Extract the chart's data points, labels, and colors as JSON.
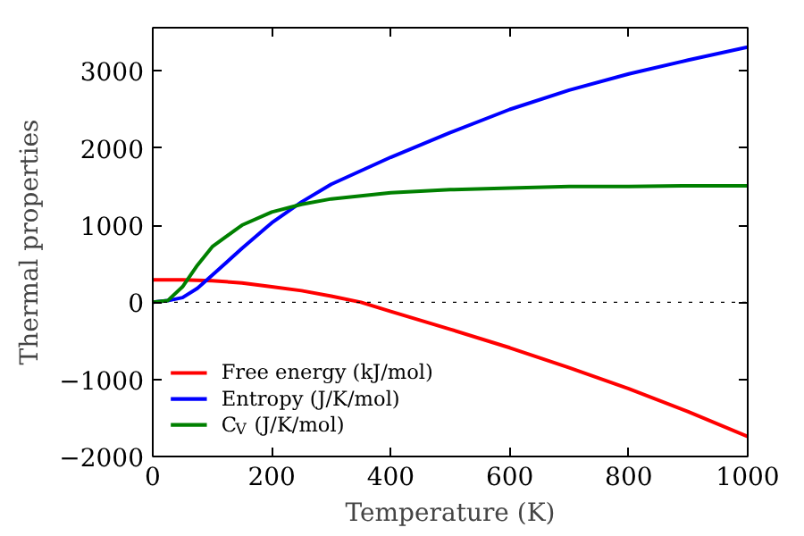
{
  "chart_data": {
    "type": "line",
    "xlabel": "Temperature (K)",
    "ylabel": "Thermal properties",
    "xlim": [
      0,
      1000
    ],
    "ylim": [
      -2000,
      3560
    ],
    "xticks": [
      0,
      200,
      400,
      600,
      800,
      1000
    ],
    "yticks": [
      -2000,
      -1000,
      0,
      1000,
      2000,
      3000
    ],
    "grid": false,
    "legend": "bottom left",
    "line_style": "solid",
    "ref_lines": [
      {
        "axis": "y",
        "value": 0,
        "color": "#000000",
        "line_style": "dotted"
      }
    ],
    "series": [
      {
        "name": "Free energy (kJ/mol)",
        "color": "#ff0000",
        "x": [
          0,
          50,
          100,
          150,
          200,
          250,
          300,
          350,
          400,
          500,
          600,
          700,
          800,
          900,
          1000
        ],
        "values": [
          290,
          290,
          280,
          250,
          200,
          150,
          80,
          0,
          -120,
          -350,
          -590,
          -850,
          -1120,
          -1420,
          -1740
        ]
      },
      {
        "name": "Entropy (J/K/mol)",
        "color": "#0000ff",
        "x": [
          0,
          25,
          50,
          75,
          100,
          150,
          200,
          250,
          300,
          400,
          500,
          600,
          700,
          800,
          900,
          1000
        ],
        "values": [
          0,
          20,
          60,
          180,
          350,
          700,
          1030,
          1300,
          1530,
          1880,
          2200,
          2500,
          2750,
          2960,
          3140,
          3310
        ]
      },
      {
        "name": "C$_{V}$ (J/K/mol)",
        "color": "#008000",
        "x": [
          0,
          25,
          50,
          75,
          100,
          150,
          200,
          250,
          300,
          400,
          500,
          600,
          700,
          800,
          900,
          1000
        ],
        "values": [
          0,
          20,
          200,
          480,
          720,
          1000,
          1170,
          1270,
          1340,
          1420,
          1460,
          1480,
          1500,
          1500,
          1510,
          1510
        ]
      }
    ]
  }
}
